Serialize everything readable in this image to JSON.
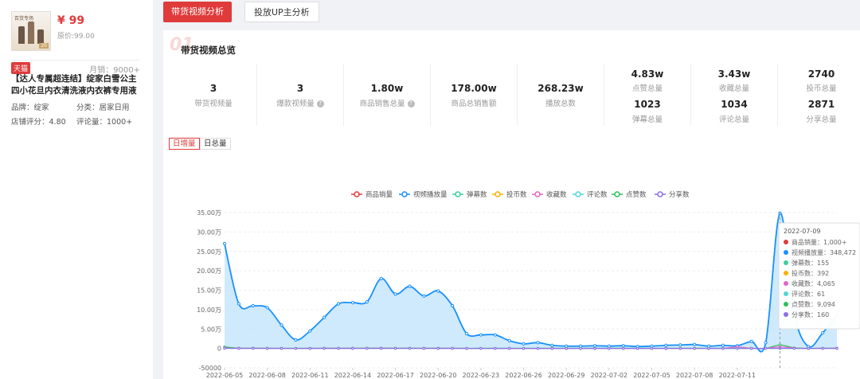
{
  "product": {
    "thumb_caption": "百货专场",
    "thumb_tag": "20",
    "price": "¥ 99",
    "original_price": "原价:99.00",
    "store_badge": "天猫",
    "monthly_sales": "月销：9000+",
    "title": "【达人专属超连结】绽家白雪公主四小花旦内衣清洗液内衣裤专用液",
    "brand_label": "品牌：",
    "brand_value": "绽家",
    "category_label": "分类：",
    "category_value": "居家日用",
    "store_score_label": "店铺评分：",
    "store_score_value": "4.80",
    "reviews_label": "评论量：",
    "reviews_value": "1000+"
  },
  "tabs": {
    "active": "带货视频分析",
    "inactive": "投放UP主分析"
  },
  "section": {
    "watermark": "01",
    "title": "带货视频总览"
  },
  "stats": [
    {
      "value": "3",
      "label": "带货视频量",
      "help": false
    },
    {
      "value": "3",
      "label": "爆款视频量",
      "help": true
    },
    {
      "value": "1.80w",
      "label": "商品销售总量",
      "help": true
    },
    {
      "value": "178.00w",
      "label": "商品总销售额",
      "help": false
    },
    {
      "value": "268.23w",
      "label": "播放总数",
      "help": false
    }
  ],
  "stats_pairs": [
    {
      "v1": "4.83w",
      "l1": "点赞总量",
      "v2": "1023",
      "l2": "弹幕总量"
    },
    {
      "v1": "3.43w",
      "l1": "收藏总量",
      "v2": "1034",
      "l2": "评论总量"
    },
    {
      "v1": "2740",
      "l1": "投币总量",
      "v2": "2871",
      "l2": "分享总量"
    }
  ],
  "help_glyph": "?",
  "toggles": {
    "daily_increment": "日增量",
    "daily_total": "日总量"
  },
  "colors": {
    "accent": "#e03b3b",
    "sales": "#e03b3b",
    "plays": "#1890ff",
    "danmaku": "#3ccf9c",
    "coins": "#f5b400",
    "favorites": "#e264c8",
    "comments": "#52d7d9",
    "likes": "#2fbf5a",
    "shares": "#8b6ee8"
  },
  "chart_data": {
    "type": "area",
    "legend": [
      "商品销量",
      "视频播放量",
      "弹幕数",
      "投币数",
      "收藏数",
      "评论数",
      "点赞数",
      "分享数"
    ],
    "legend_position": "top-center",
    "x_ticks": [
      "2022-06-05",
      "2022-06-08",
      "2022-06-11",
      "2022-06-14",
      "2022-06-17",
      "2022-06-20",
      "2022-06-23",
      "2022-06-26",
      "2022-06-29",
      "2022-07-02",
      "2022-07-05",
      "2022-07-08",
      "2022-07-11"
    ],
    "y_ticks": [
      {
        "value": 350000,
        "label": "35.00万"
      },
      {
        "value": 300000,
        "label": "30.00万"
      },
      {
        "value": 250000,
        "label": "25.00万"
      },
      {
        "value": 200000,
        "label": "20.00万"
      },
      {
        "value": 150000,
        "label": "15.00万"
      },
      {
        "value": 100000,
        "label": "10.00万"
      },
      {
        "value": 50000,
        "label": "5.00万"
      },
      {
        "value": 0,
        "label": "0"
      },
      {
        "value": -50000,
        "label": "-50000"
      }
    ],
    "ylim": [
      -50000,
      350000
    ],
    "x_start": "2022-06-05",
    "grid": true,
    "series": [
      {
        "name": "视频播放量",
        "area": true,
        "values": [
          270000,
          115000,
          110000,
          105000,
          60000,
          22000,
          45000,
          80000,
          115000,
          118000,
          120000,
          180000,
          140000,
          160000,
          135000,
          148000,
          110000,
          38000,
          35000,
          35000,
          20000,
          12000,
          15000,
          8000,
          6000,
          6000,
          7000,
          6000,
          7000,
          5000,
          6000,
          8000,
          9000,
          10000,
          6000,
          8000,
          7000,
          18000,
          15000,
          348472,
          90000,
          5000,
          40000,
          85000
        ]
      },
      {
        "name": "弹幕数",
        "area": false,
        "values": [
          3000,
          500,
          500,
          300,
          200,
          200,
          200,
          300,
          200,
          200,
          300,
          200,
          200,
          200,
          200,
          200,
          200,
          200,
          200,
          200,
          200,
          200,
          200,
          200,
          200,
          200,
          200,
          200,
          200,
          200,
          200,
          200,
          200,
          200,
          200,
          200,
          200,
          200,
          200,
          155,
          200,
          200,
          200,
          200
        ]
      },
      {
        "name": "点赞数",
        "area": false,
        "values": [
          4000,
          800,
          600,
          500,
          300,
          200,
          300,
          500,
          600,
          500,
          700,
          900,
          600,
          700,
          600,
          600,
          500,
          200,
          200,
          200,
          200,
          200,
          200,
          200,
          200,
          200,
          200,
          200,
          200,
          200,
          200,
          200,
          200,
          200,
          200,
          200,
          200,
          300,
          300,
          9094,
          1500,
          200,
          500,
          900
        ]
      },
      {
        "name": "收藏数",
        "area": false,
        "values": [
          800,
          300,
          300,
          200,
          200,
          100,
          200,
          300,
          300,
          300,
          400,
          500,
          400,
          400,
          300,
          300,
          300,
          100,
          100,
          100,
          100,
          100,
          100,
          100,
          100,
          100,
          100,
          100,
          100,
          100,
          100,
          100,
          100,
          100,
          100,
          100,
          4000,
          200,
          200,
          4065,
          800,
          100,
          300,
          600
        ]
      },
      {
        "name": "分享数",
        "area": false,
        "values": [
          200,
          100,
          100,
          100,
          100,
          100,
          100,
          100,
          100,
          100,
          100,
          100,
          100,
          100,
          100,
          100,
          100,
          100,
          100,
          100,
          100,
          100,
          100,
          100,
          100,
          100,
          100,
          100,
          100,
          100,
          100,
          100,
          100,
          100,
          100,
          100,
          100,
          100,
          100,
          160,
          100,
          100,
          100,
          100
        ]
      }
    ],
    "tooltip": {
      "date": "2022-07-09",
      "rows": [
        {
          "label": "商品销量：",
          "value": "1,000+",
          "color": "#e03b3b"
        },
        {
          "label": "视频播放量：",
          "value": "348,472",
          "color": "#1890ff"
        },
        {
          "label": "弹幕数：",
          "value": "155",
          "color": "#3ccf9c"
        },
        {
          "label": "投币数：",
          "value": "392",
          "color": "#f5b400"
        },
        {
          "label": "收藏数：",
          "value": "4,065",
          "color": "#e264c8"
        },
        {
          "label": "评论数：",
          "value": "61",
          "color": "#52d7d9"
        },
        {
          "label": "点赞数：",
          "value": "9,094",
          "color": "#2fbf5a"
        },
        {
          "label": "分享数：",
          "value": "160",
          "color": "#8b6ee8"
        }
      ]
    }
  }
}
